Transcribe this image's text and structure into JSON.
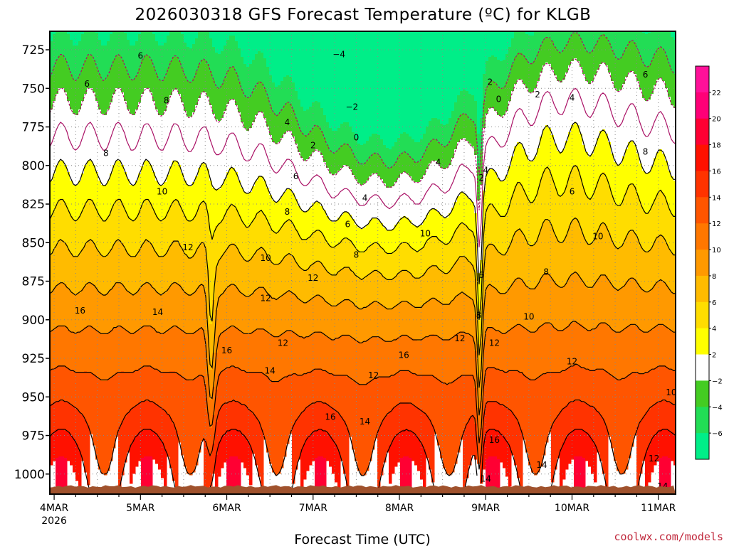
{
  "chart_data": {
    "type": "heatmap",
    "title": "2026030318 GFS Forecast Temperature (ºC) for KLGB",
    "xlabel": "Forecast Time (UTC)",
    "ylabel": "Pressure (hPa)",
    "credit": "coolwx.com/models",
    "x_ticks": [
      {
        "label": "4MAR",
        "sub": "2026",
        "day": 0
      },
      {
        "label": "5MAR",
        "sub": "",
        "day": 1
      },
      {
        "label": "6MAR",
        "sub": "",
        "day": 2
      },
      {
        "label": "7MAR",
        "sub": "",
        "day": 3
      },
      {
        "label": "8MAR",
        "sub": "",
        "day": 4
      },
      {
        "label": "9MAR",
        "sub": "",
        "day": 5
      },
      {
        "label": "10MAR",
        "sub": "",
        "day": 6
      },
      {
        "label": "11MAR",
        "sub": "",
        "day": 7
      }
    ],
    "xlim_days": [
      -0.05,
      7.2
    ],
    "y_ticks": [
      725,
      750,
      775,
      800,
      825,
      850,
      875,
      900,
      925,
      950,
      975,
      1000
    ],
    "ylim": [
      713,
      1013
    ],
    "surface_pressure": 1008,
    "colorbar": {
      "levels": [
        -8,
        -6,
        -4,
        -2,
        2,
        4,
        6,
        8,
        10,
        12,
        14,
        16,
        18,
        20,
        22,
        24
      ],
      "labels": [
        "22",
        "20",
        "18",
        "16",
        "14",
        "12",
        "10",
        "8",
        "6",
        "4",
        "2",
        "−2",
        "−4",
        "−6"
      ],
      "colors": [
        "#00ee88",
        "#22dd55",
        "#44cc22",
        "#ffffff",
        "#ffff00",
        "#ffdd00",
        "#ffbb00",
        "#ff9900",
        "#ff7700",
        "#ff5500",
        "#ff3300",
        "#ff1100",
        "#ff0033",
        "#ff0077",
        "#ff1199"
      ]
    },
    "contour_levels": [
      -4,
      -2,
      0,
      2,
      4,
      6,
      8,
      10,
      12,
      14,
      16
    ],
    "contour_labels": [
      {
        "text": "6",
        "day": 1.0,
        "p": 729
      },
      {
        "text": "6",
        "day": 0.38,
        "p": 747
      },
      {
        "text": "8",
        "day": 1.3,
        "p": 758
      },
      {
        "text": "8",
        "day": 0.6,
        "p": 792
      },
      {
        "text": "−4",
        "day": 3.3,
        "p": 728
      },
      {
        "text": "−2",
        "day": 3.45,
        "p": 762
      },
      {
        "text": "0",
        "day": 3.5,
        "p": 782
      },
      {
        "text": "2",
        "day": 3.0,
        "p": 787
      },
      {
        "text": "4",
        "day": 2.7,
        "p": 772
      },
      {
        "text": "6",
        "day": 2.8,
        "p": 807
      },
      {
        "text": "8",
        "day": 2.7,
        "p": 830
      },
      {
        "text": "10",
        "day": 1.25,
        "p": 817
      },
      {
        "text": "10",
        "day": 2.45,
        "p": 860
      },
      {
        "text": "12",
        "day": 1.55,
        "p": 853
      },
      {
        "text": "12",
        "day": 2.45,
        "p": 886
      },
      {
        "text": "12",
        "day": 2.65,
        "p": 915
      },
      {
        "text": "14",
        "day": 1.2,
        "p": 895
      },
      {
        "text": "16",
        "day": 0.3,
        "p": 894
      },
      {
        "text": "16",
        "day": 2.0,
        "p": 920
      },
      {
        "text": "14",
        "day": 2.5,
        "p": 933
      },
      {
        "text": "12",
        "day": 3.0,
        "p": 873
      },
      {
        "text": "16",
        "day": 3.2,
        "p": 963
      },
      {
        "text": "14",
        "day": 3.6,
        "p": 966
      },
      {
        "text": "12",
        "day": 3.7,
        "p": 936
      },
      {
        "text": "16",
        "day": 4.05,
        "p": 923
      },
      {
        "text": "10",
        "day": 4.3,
        "p": 844
      },
      {
        "text": "8",
        "day": 3.5,
        "p": 858
      },
      {
        "text": "6",
        "day": 3.4,
        "p": 838
      },
      {
        "text": "4",
        "day": 3.6,
        "p": 821
      },
      {
        "text": "4",
        "day": 4.45,
        "p": 798
      },
      {
        "text": "4",
        "day": 5.0,
        "p": 803
      },
      {
        "text": "2",
        "day": 4.95,
        "p": 808
      },
      {
        "text": "2",
        "day": 5.05,
        "p": 746
      },
      {
        "text": "0",
        "day": 5.15,
        "p": 757
      },
      {
        "text": "2",
        "day": 5.6,
        "p": 754
      },
      {
        "text": "4",
        "day": 6.0,
        "p": 756
      },
      {
        "text": "6",
        "day": 6.85,
        "p": 741
      },
      {
        "text": "8",
        "day": 6.85,
        "p": 791
      },
      {
        "text": "6",
        "day": 6.0,
        "p": 817
      },
      {
        "text": "8",
        "day": 5.7,
        "p": 869
      },
      {
        "text": "10",
        "day": 6.3,
        "p": 846
      },
      {
        "text": "10",
        "day": 7.25,
        "p": 863
      },
      {
        "text": "12",
        "day": 7.45,
        "p": 883
      },
      {
        "text": "6",
        "day": 4.95,
        "p": 871
      },
      {
        "text": "8",
        "day": 4.92,
        "p": 897
      },
      {
        "text": "12",
        "day": 4.7,
        "p": 912
      },
      {
        "text": "12",
        "day": 5.1,
        "p": 915
      },
      {
        "text": "10",
        "day": 5.5,
        "p": 898
      },
      {
        "text": "12",
        "day": 6.0,
        "p": 927
      },
      {
        "text": "10",
        "day": 7.15,
        "p": 947
      },
      {
        "text": "12",
        "day": 6.95,
        "p": 990
      },
      {
        "text": "16",
        "day": 5.1,
        "p": 978
      },
      {
        "text": "14",
        "day": 5.65,
        "p": 994
      },
      {
        "text": "14",
        "day": 5.0,
        "p": 1003
      },
      {
        "text": "14",
        "day": 7.05,
        "p": 1008
      }
    ]
  }
}
